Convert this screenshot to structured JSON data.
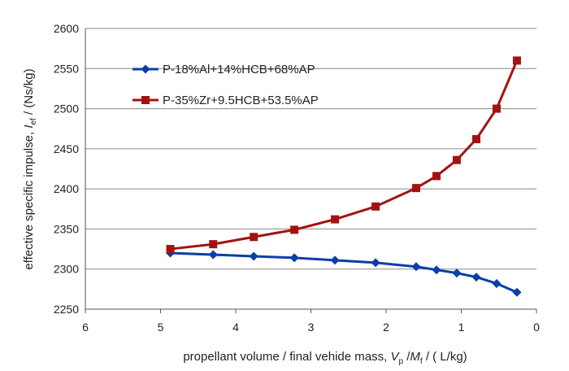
{
  "chart_data": {
    "type": "line",
    "title": "",
    "xlabel": {
      "prefix": "propellant volume / final vehide mass, ",
      "var1": "V",
      "sub1": "p",
      "sep": " /",
      "var2": "M",
      "sub2": "f",
      "unit": " / ( L/kg)"
    },
    "ylabel": {
      "prefix": "effective specific impulse, ",
      "var": "I",
      "sub": "ef",
      "unit": " / (Ns/kg)"
    },
    "xlim": [
      6,
      0
    ],
    "ylim": [
      2250,
      2600
    ],
    "x_reversed": true,
    "x_ticks": [
      6,
      5,
      4,
      3,
      2,
      1,
      0
    ],
    "y_ticks": [
      2250,
      2300,
      2350,
      2400,
      2450,
      2500,
      2550,
      2600
    ],
    "grid": "horizontal",
    "legend_position": "upper-left inside",
    "series": [
      {
        "name": "P-18%Al+14%HCB+68%AP",
        "color": "#0b3ea8",
        "marker": "diamond",
        "x": [
          4.87,
          4.3,
          3.76,
          3.22,
          2.68,
          2.14,
          1.6,
          1.33,
          1.06,
          0.8,
          0.53,
          0.26
        ],
        "y": [
          2320,
          2318,
          2316,
          2314,
          2311,
          2308,
          2303,
          2299,
          2295,
          2290,
          2282,
          2271
        ]
      },
      {
        "name": "P-35%Zr+9.5HCB+53.5%AP",
        "color": "#a31212",
        "marker": "square",
        "x": [
          4.87,
          4.3,
          3.76,
          3.22,
          2.68,
          2.14,
          1.6,
          1.33,
          1.06,
          0.8,
          0.53,
          0.26
        ],
        "y": [
          2325,
          2331,
          2340,
          2349,
          2362,
          2378,
          2401,
          2416,
          2436,
          2462,
          2500,
          2560
        ]
      }
    ]
  }
}
